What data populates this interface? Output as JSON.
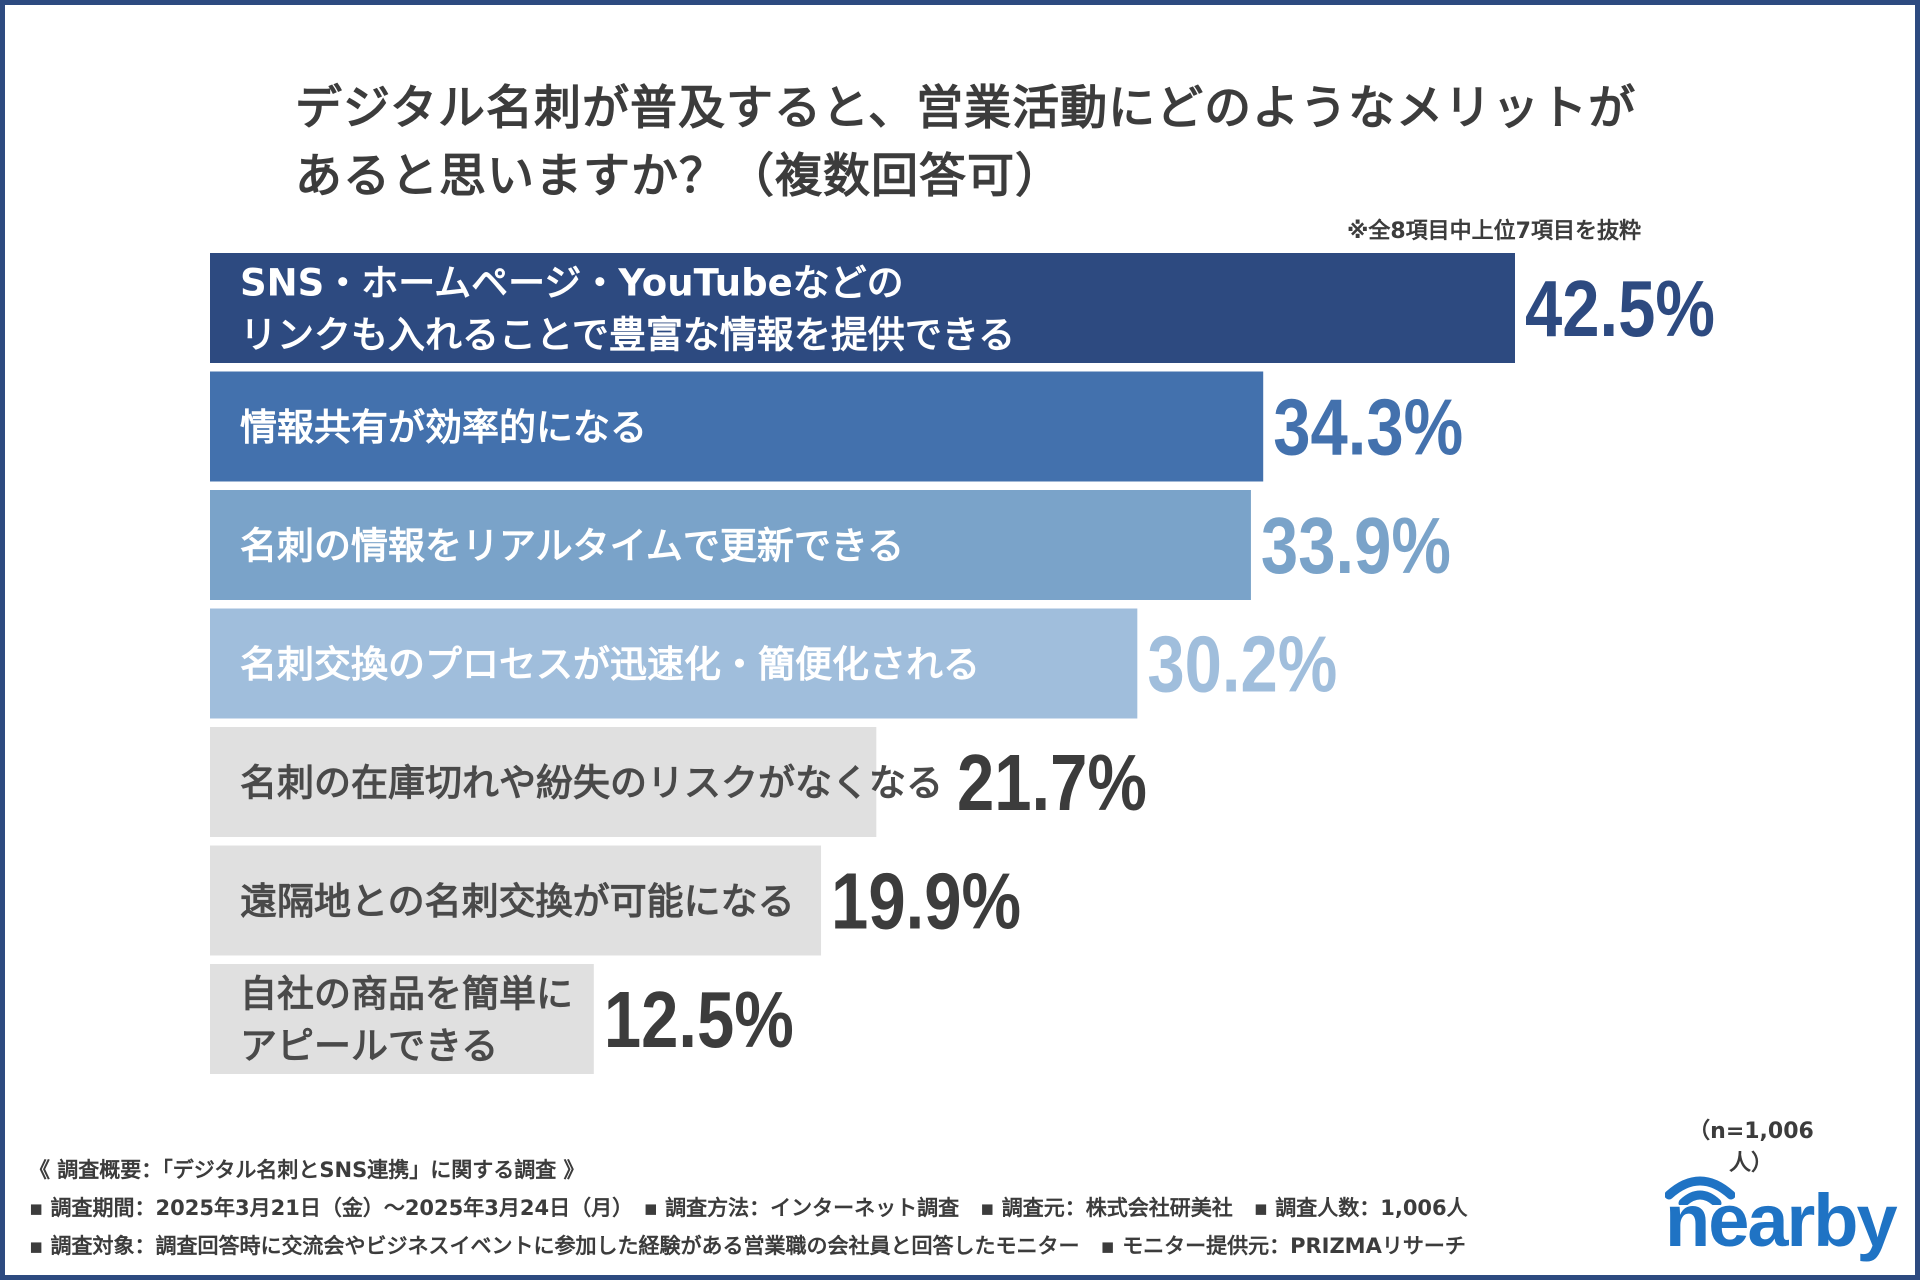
{
  "header": {
    "title_line1": "デジタル名刺が普及すると、営業活動にどのようなメリットが",
    "title_line2": "あると思いますか？（複数回答可）",
    "note": "※全8項目中上位7項目を抜粋"
  },
  "chart_data": {
    "type": "bar",
    "orientation": "horizontal",
    "categories": [
      "SNS・ホームページ・YouTubeなどの\nリンクも入れることで豊富な情報を提供できる",
      "情報共有が効率的になる",
      "名刺の情報をリアルタイムで更新できる",
      "名刺交換のプロセスが迅速化・簡便化される",
      "名刺の在庫切れや紛失のリスクがなくなる",
      "遠隔地との名刺交換が可能になる",
      "自社の商品を簡単に\nアピールできる"
    ],
    "values": [
      42.5,
      34.3,
      33.9,
      30.2,
      21.7,
      19.9,
      12.5
    ],
    "value_labels": [
      "42.5%",
      "34.3%",
      "33.9%",
      "30.2%",
      "21.7%",
      "19.9%",
      "12.5%"
    ],
    "bar_colors": [
      "#2d4a80",
      "#4371ad",
      "#7aa3c9",
      "#a0bedc",
      "#e0e0e0",
      "#e0e0e0",
      "#e0e0e0"
    ],
    "label_colors": [
      "#ffffff",
      "#ffffff",
      "#ffffff",
      "#ffffff",
      "#4a4a4a",
      "#4a4a4a",
      "#4a4a4a"
    ],
    "value_colors": [
      "#2d4a80",
      "#4371ad",
      "#7aa3c9",
      "#a0bedc",
      "#3c3c3c",
      "#3c3c3c",
      "#3c3c3c"
    ],
    "xlim": [
      0,
      42.5
    ],
    "grid": false,
    "legend": "none"
  },
  "footer": {
    "summary": "《 調査概要：「デジタル名刺とSNS連携」に関する調査 》",
    "line1": "▪ 調査期間：2025年3月21日（金）〜2025年3月24日（月）　▪ 調査方法：インターネット調査　▪ 調査元：株式会社研美社　▪ 調査人数：1,006人",
    "line2": "▪ 調査対象：調査回答時に交流会やビジネスイベントに参加した経験がある営業職の会社員と回答したモニター　▪ モニター提供元：PRIZMAリサーチ",
    "sample_size": "（n=1,006人）"
  },
  "brand": {
    "logo_text": "nearby",
    "logo_color": "#1f73c4",
    "logo_icon": "wifi-signal-icon"
  }
}
